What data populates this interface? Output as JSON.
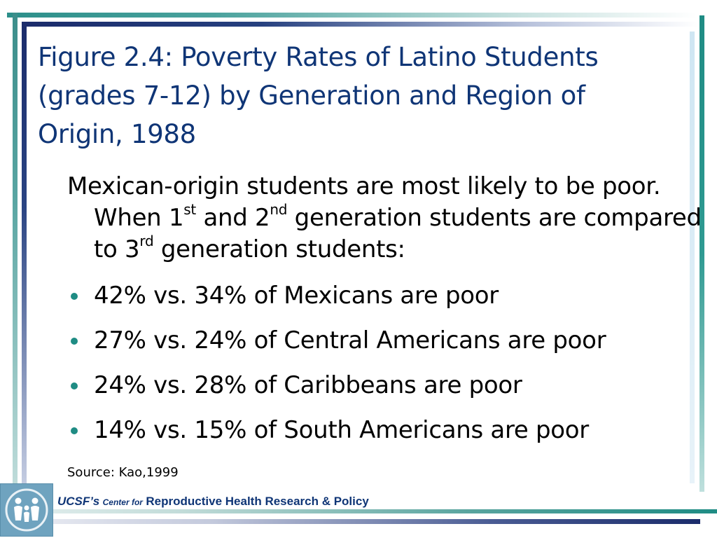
{
  "slide": {
    "title": "Figure 2.4: Poverty Rates of Latino Students (grades 7-12) by Generation and Region of Origin, 1988",
    "intro": {
      "part1": "Mexican-origin students are most likely to be poor. When 1",
      "sup1": "st",
      "part2": " and 2",
      "sup2": "nd",
      "part3": " generation students are compared to 3",
      "sup3": "rd",
      "part4": " generation students:"
    },
    "bullets": [
      {
        "text": "42% vs. 34% of Mexicans are poor"
      },
      {
        "text": "27% vs. 24% of Central Americans are poor"
      },
      {
        "text": "24% vs. 28% of Caribbeans are poor"
      },
      {
        "text": "14% vs. 15% of South Americans are poor"
      }
    ],
    "source": "Source: Kao,1999"
  },
  "footer": {
    "ucsf": "UCSF’s",
    "center_for": "Center for",
    "org": "Reproductive Health Research & Policy"
  },
  "logo": {
    "icon": "family-figures-icon"
  },
  "colors": {
    "title": "#0f3576",
    "accent_teal": "#1f8c84",
    "accent_navy": "#1b2c6b",
    "logo_bg": "#6fa3bf"
  }
}
